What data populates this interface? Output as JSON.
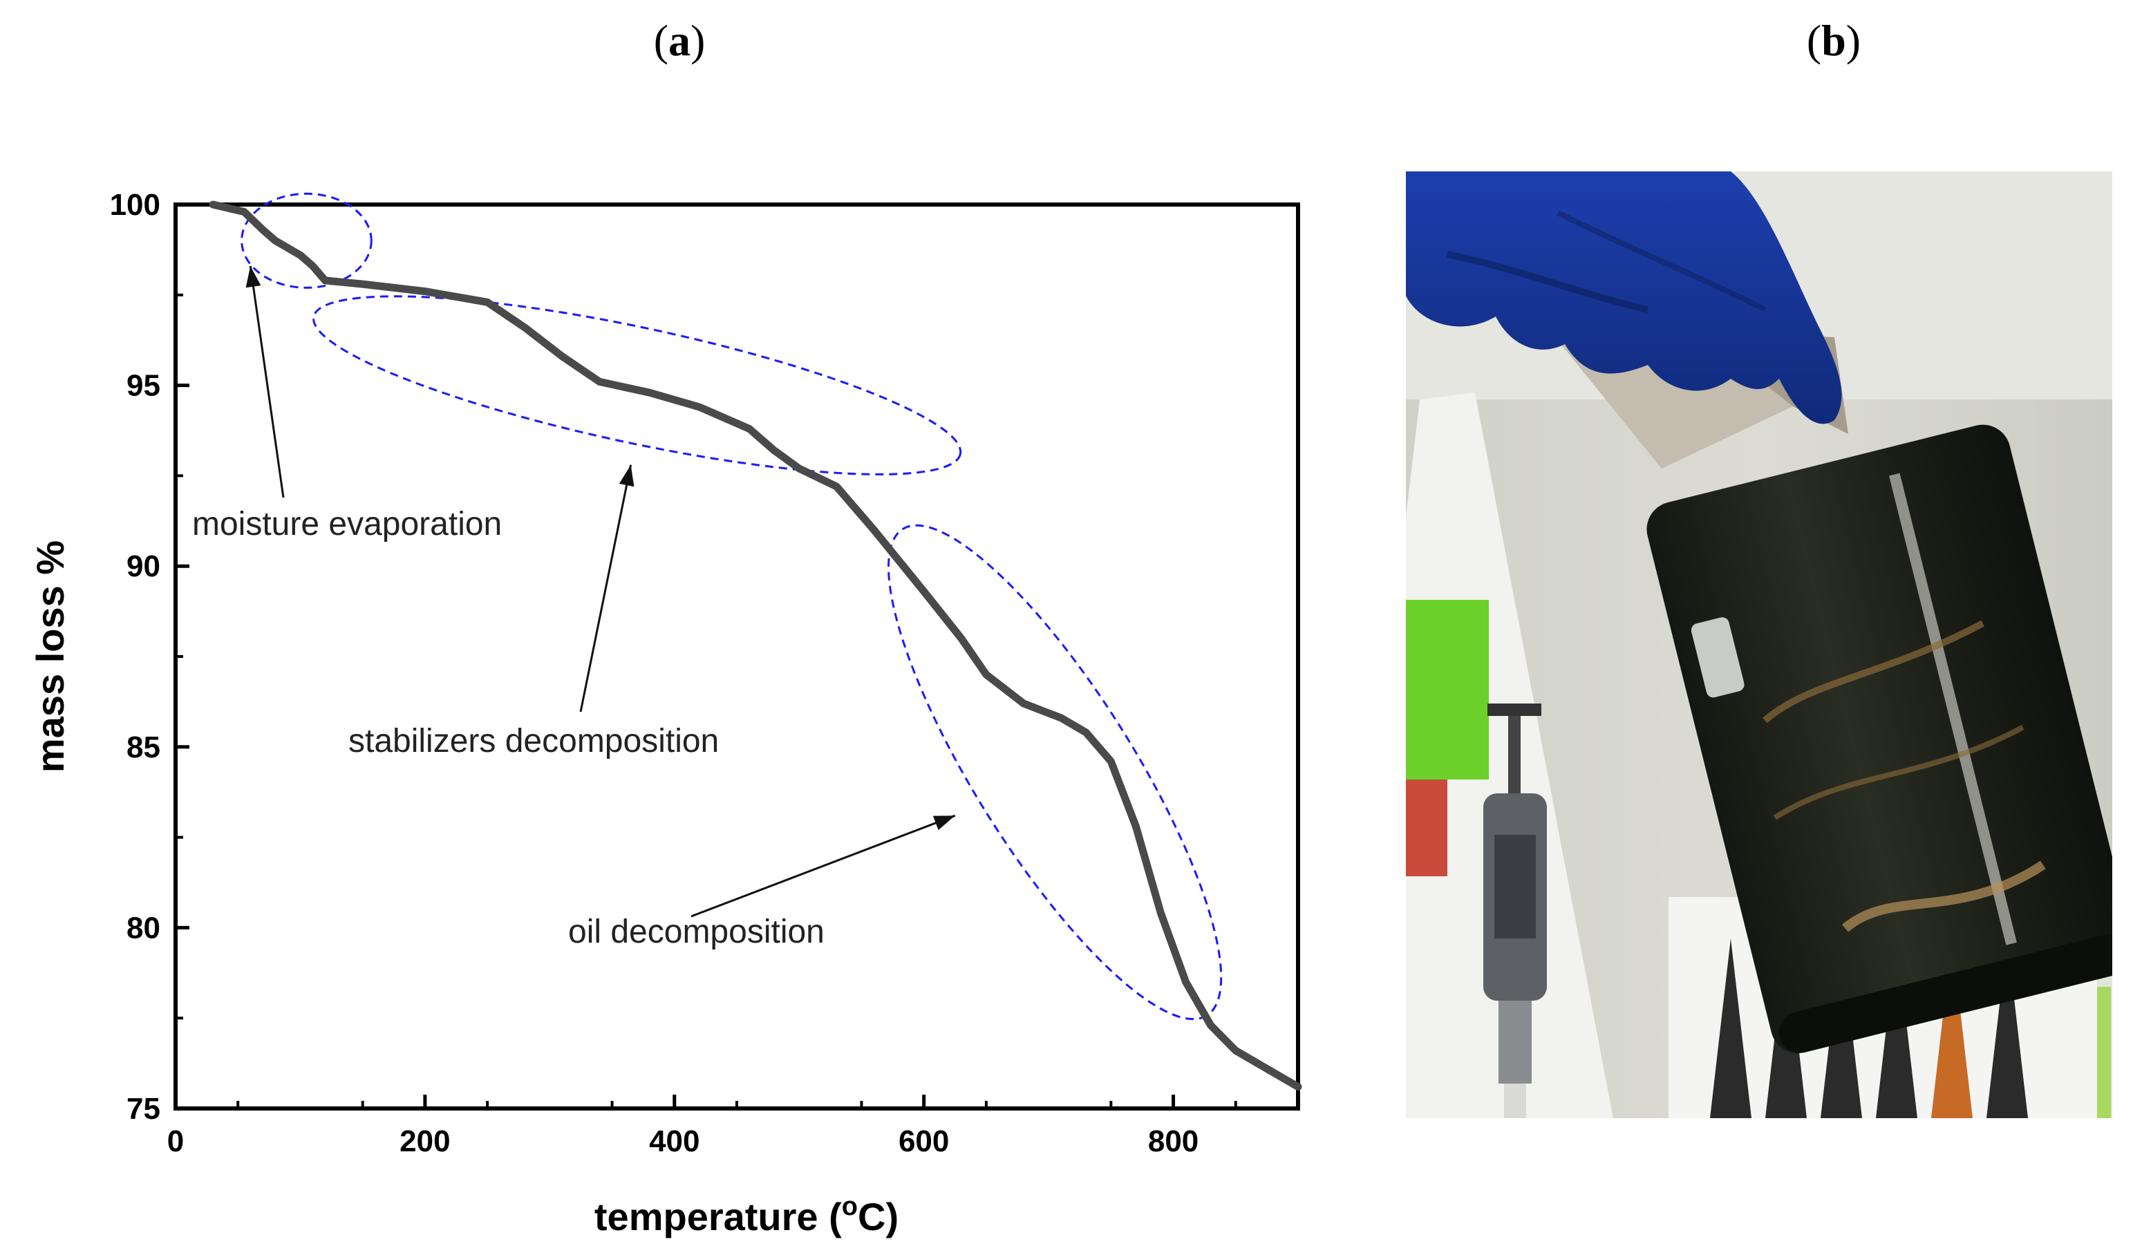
{
  "panels": {
    "a": {
      "open": "(",
      "letter": "a",
      "close": ")"
    },
    "b": {
      "open": "(",
      "letter": "b",
      "close": ")"
    }
  },
  "chart_data": {
    "type": "line",
    "xlabel": "temperature (°C)",
    "xlabel_parts": {
      "pre": "temperature (",
      "sup": "o",
      "post": "C)"
    },
    "ylabel": "mass loss %",
    "xlim": [
      0,
      900
    ],
    "ylim": [
      75,
      100
    ],
    "xticks": [
      0,
      200,
      400,
      600,
      800
    ],
    "yticks": [
      75,
      80,
      85,
      90,
      95,
      100
    ],
    "grid": false,
    "line_color": "#4a4a4a",
    "ellipse_color": "#1a1aff",
    "series": [
      {
        "x": [
          30,
          55,
          70,
          80,
          90,
          100,
          110,
          120,
          150,
          200,
          250,
          280,
          310,
          340,
          380,
          420,
          460,
          480,
          500,
          530,
          560,
          600,
          630,
          650,
          680,
          710,
          730,
          750,
          770,
          790,
          810,
          830,
          850,
          870,
          900
        ],
        "y": [
          100,
          99.8,
          99.3,
          99.0,
          98.8,
          98.6,
          98.3,
          97.9,
          97.8,
          97.6,
          97.3,
          96.6,
          95.8,
          95.1,
          94.8,
          94.4,
          93.8,
          93.2,
          92.7,
          92.2,
          91.0,
          89.3,
          88.0,
          87.0,
          86.2,
          85.8,
          85.4,
          84.6,
          82.8,
          80.4,
          78.5,
          77.3,
          76.6,
          76.2,
          75.6
        ]
      }
    ],
    "annotations": [
      {
        "text": "moisture evaporation",
        "points_to": [
          60,
          98.3
        ]
      },
      {
        "text": "stabilizers decomposition",
        "points_to": [
          365,
          92.8
        ]
      },
      {
        "text": "oil decomposition",
        "points_to": [
          625,
          83.1
        ]
      }
    ],
    "regions": [
      {
        "center": [
          105,
          99.0
        ],
        "rx": 52,
        "ry": 1.3,
        "angle_deg": 0
      },
      {
        "center": [
          370,
          95.0
        ],
        "rx": 265,
        "ry": 1.6,
        "angle_deg": 12
      },
      {
        "center": [
          705,
          84.3
        ],
        "rx": 230,
        "ry": 2.2,
        "angle_deg": 58
      }
    ]
  }
}
